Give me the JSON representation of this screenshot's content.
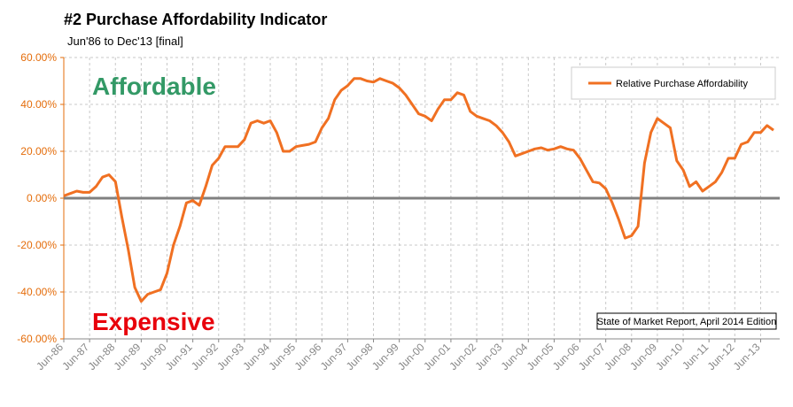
{
  "chart_data": {
    "type": "line",
    "title": "#2 Purchase Affordability Indicator",
    "subtitle": "Jun'86 to Dec'13 [final]",
    "annotations": [
      "Affordable",
      "Expensive",
      "State of Market Report, April 2014 Edition"
    ],
    "x": [
      "Jun-86",
      "Sep-86",
      "Dec-86",
      "Mar-87",
      "Jun-87",
      "Sep-87",
      "Dec-87",
      "Mar-88",
      "Jun-88",
      "Sep-88",
      "Dec-88",
      "Mar-89",
      "Jun-89",
      "Sep-89",
      "Dec-89",
      "Mar-90",
      "Jun-90",
      "Sep-90",
      "Dec-90",
      "Mar-91",
      "Jun-91",
      "Sep-91",
      "Dec-91",
      "Mar-92",
      "Jun-92",
      "Sep-92",
      "Dec-92",
      "Mar-93",
      "Jun-93",
      "Sep-93",
      "Dec-93",
      "Mar-94",
      "Jun-94",
      "Sep-94",
      "Dec-94",
      "Mar-95",
      "Jun-95",
      "Sep-95",
      "Dec-95",
      "Mar-96",
      "Jun-96",
      "Sep-96",
      "Dec-96",
      "Mar-97",
      "Jun-97",
      "Sep-97",
      "Dec-97",
      "Mar-98",
      "Jun-98",
      "Sep-98",
      "Dec-98",
      "Mar-99",
      "Jun-99",
      "Sep-99",
      "Dec-99",
      "Mar-00",
      "Jun-00",
      "Sep-00",
      "Dec-00",
      "Mar-01",
      "Jun-01",
      "Sep-01",
      "Dec-01",
      "Mar-02",
      "Jun-02",
      "Sep-02",
      "Dec-02",
      "Mar-03",
      "Jun-03",
      "Sep-03",
      "Dec-03",
      "Mar-04",
      "Jun-04",
      "Sep-04",
      "Dec-04",
      "Mar-05",
      "Jun-05",
      "Sep-05",
      "Dec-05",
      "Mar-06",
      "Jun-06",
      "Sep-06",
      "Dec-06",
      "Mar-07",
      "Jun-07",
      "Sep-07",
      "Dec-07",
      "Mar-08",
      "Jun-08",
      "Sep-08",
      "Dec-08",
      "Mar-09",
      "Jun-09",
      "Sep-09",
      "Dec-09",
      "Mar-10",
      "Jun-10",
      "Sep-10",
      "Dec-10",
      "Mar-11",
      "Jun-11",
      "Sep-11",
      "Dec-11",
      "Mar-12",
      "Jun-12",
      "Sep-12",
      "Dec-12",
      "Mar-13",
      "Jun-13",
      "Sep-13",
      "Dec-13"
    ],
    "series": [
      {
        "name": "Relative Purchase Affordability",
        "color": "#f07022",
        "values": [
          1,
          2,
          3,
          2.5,
          2.5,
          5,
          9,
          10,
          7,
          -8,
          -22,
          -38,
          -44,
          -41,
          -40,
          -39,
          -32,
          -20,
          -12,
          -2,
          -1,
          -3,
          5,
          14,
          17,
          22,
          22,
          22,
          25,
          32,
          33,
          32,
          33,
          28,
          20,
          20,
          22,
          22.5,
          23,
          24,
          30,
          34,
          42,
          46,
          48,
          51,
          51,
          50,
          49.5,
          51,
          50,
          49,
          47,
          44,
          40,
          36,
          35,
          33,
          38,
          42,
          42,
          45,
          44,
          37,
          35,
          34,
          33,
          31,
          28,
          24,
          18,
          19,
          20,
          21,
          21.5,
          20.5,
          21,
          22,
          21,
          20.5,
          17,
          12,
          7,
          6.5,
          4,
          -2,
          -9,
          -17,
          -16,
          -12,
          15,
          28,
          34,
          32,
          30,
          16,
          12,
          5,
          7,
          3,
          5,
          7,
          11,
          17,
          17,
          23,
          24,
          28,
          28,
          31,
          29
        ]
      }
    ],
    "xticks": [
      "Jun-86",
      "Jun-87",
      "Jun-88",
      "Jun-89",
      "Jun-90",
      "Jun-91",
      "Jun-92",
      "Jun-93",
      "Jun-94",
      "Jun-95",
      "Jun-96",
      "Jun-97",
      "Jun-98",
      "Jun-99",
      "Jun-00",
      "Jun-01",
      "Jun-02",
      "Jun-03",
      "Jun-04",
      "Jun-05",
      "Jun-06",
      "Jun-07",
      "Jun-08",
      "Jun-09",
      "Jun-10",
      "Jun-11",
      "Jun-12",
      "Jun-13"
    ],
    "ylim": [
      -60,
      60
    ],
    "yticks": [
      {
        "value": -60,
        "label": "-60.00%"
      },
      {
        "value": -40,
        "label": "-40.00%"
      },
      {
        "value": -20,
        "label": "-20.00%"
      },
      {
        "value": 0,
        "label": "0.00%"
      },
      {
        "value": 20,
        "label": "20.00%"
      },
      {
        "value": 40,
        "label": "40.00%"
      },
      {
        "value": 60,
        "label": "60.00%"
      }
    ],
    "grid": true,
    "legend": "top-right"
  }
}
